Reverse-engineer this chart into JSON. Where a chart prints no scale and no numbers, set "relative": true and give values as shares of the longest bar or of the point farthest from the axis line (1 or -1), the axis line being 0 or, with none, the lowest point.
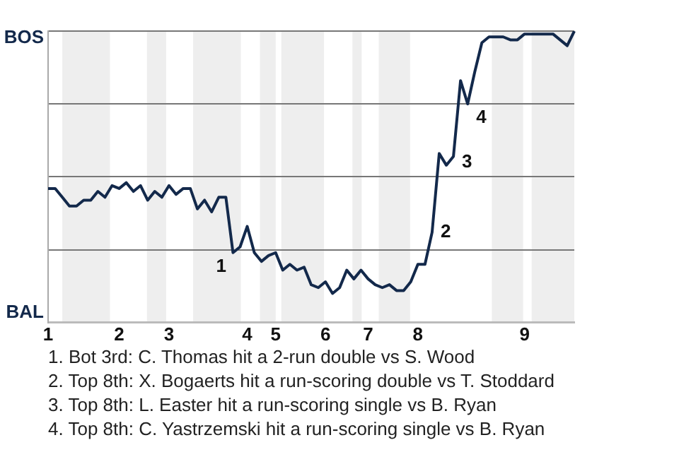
{
  "chart_data": {
    "type": "line",
    "categories": [
      "1",
      null,
      null,
      null,
      null,
      null,
      null,
      null,
      null,
      null,
      "2",
      null,
      null,
      null,
      null,
      null,
      null,
      "3",
      null,
      null,
      null,
      null,
      null,
      null,
      null,
      null,
      null,
      null,
      "4",
      null,
      null,
      null,
      "5",
      null,
      null,
      null,
      null,
      null,
      null,
      "6",
      null,
      null,
      null,
      null,
      null,
      "7",
      null,
      null,
      null,
      null,
      null,
      null,
      "8",
      null,
      null,
      null,
      null,
      null,
      null,
      null,
      null,
      null,
      null,
      null,
      null,
      null,
      null,
      "9",
      null,
      null,
      null,
      null,
      null,
      null,
      null
    ],
    "series": [
      {
        "color": "#13294b",
        "values": [
          0.46,
          0.46,
          0.43,
          0.4,
          0.4,
          0.42,
          0.42,
          0.45,
          0.43,
          0.47,
          0.46,
          0.48,
          0.45,
          0.47,
          0.42,
          0.45,
          0.43,
          0.47,
          0.44,
          0.46,
          0.46,
          0.39,
          0.42,
          0.38,
          0.43,
          0.43,
          0.24,
          0.26,
          0.33,
          0.24,
          0.21,
          0.23,
          0.24,
          0.18,
          0.2,
          0.18,
          0.19,
          0.13,
          0.12,
          0.14,
          0.1,
          0.12,
          0.18,
          0.15,
          0.18,
          0.15,
          0.13,
          0.12,
          0.13,
          0.11,
          0.11,
          0.14,
          0.2,
          0.2,
          0.31,
          0.58,
          0.54,
          0.57,
          0.83,
          0.75,
          0.86,
          0.96,
          0.98,
          0.98,
          0.98,
          0.97,
          0.97,
          0.99,
          0.99,
          0.99,
          0.99,
          0.99,
          0.97,
          0.95,
          1.0
        ]
      }
    ],
    "relative": true,
    "grid": "y",
    "marker": "none",
    "annotations": [
      "BOS",
      "BAL",
      "1",
      "2",
      "3",
      "4",
      "1. Bot 3rd: C. Thomas hit a 2-run double vs S. Wood",
      "2. Top 8th: X. Bogaerts hit a run-scoring double vs T. Stoddard",
      "3. Top 8th: L. Easter hit a run-scoring single vs B. Ryan",
      "4. Top 8th: C. Yastrzemski hit a run-scoring single vs B. Ryan"
    ]
  }
}
